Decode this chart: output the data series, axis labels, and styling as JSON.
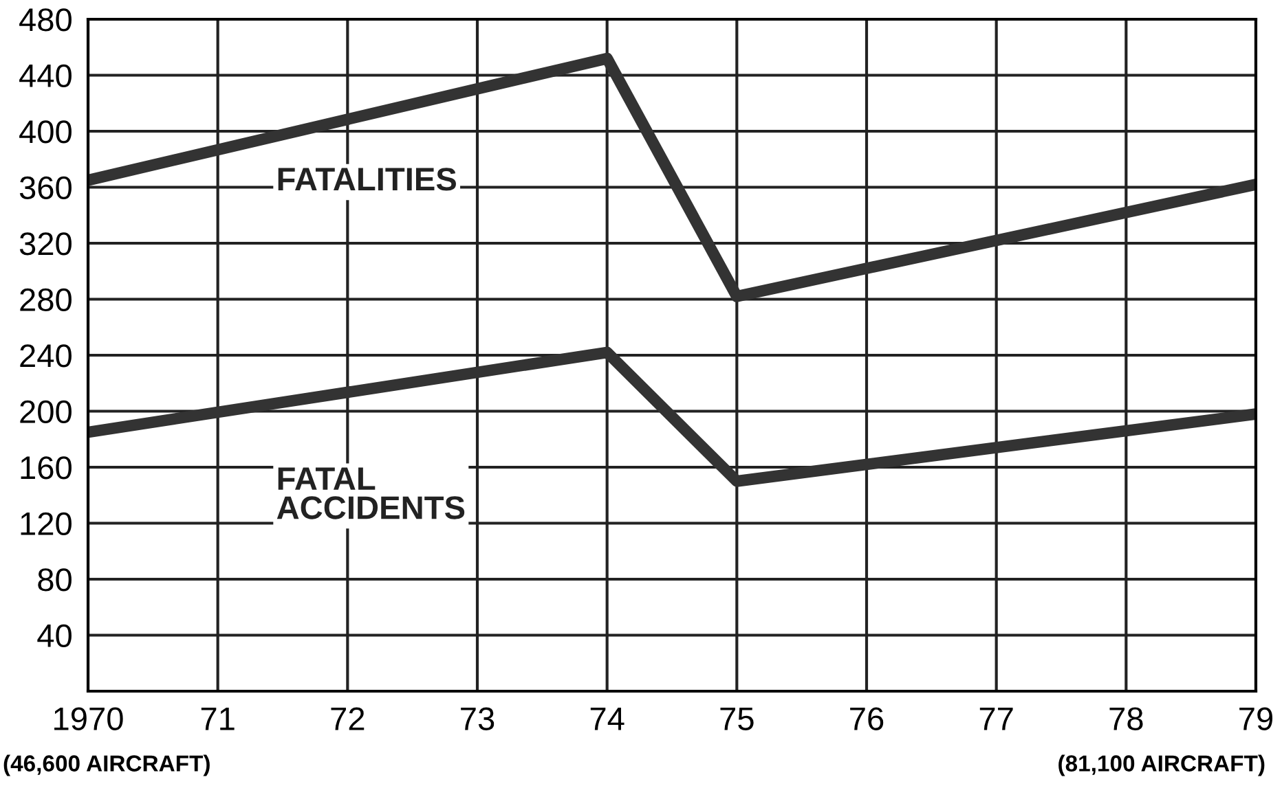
{
  "chart_data": {
    "type": "line",
    "x": [
      1970,
      1974,
      1975,
      1979
    ],
    "series": [
      {
        "name": "FATALITIES",
        "color": "#333333",
        "values": [
          365,
          452,
          282,
          362
        ]
      },
      {
        "name": "FATAL\nACCIDENTS",
        "color": "#333333",
        "values": [
          185,
          242,
          150,
          198
        ]
      }
    ],
    "xlim": [
      1970,
      1979
    ],
    "xticks": [
      {
        "value": 1970,
        "label": "1970"
      },
      {
        "value": 1971,
        "label": "71"
      },
      {
        "value": 1972,
        "label": "72"
      },
      {
        "value": 1973,
        "label": "73"
      },
      {
        "value": 1974,
        "label": "74"
      },
      {
        "value": 1975,
        "label": "75"
      },
      {
        "value": 1976,
        "label": "76"
      },
      {
        "value": 1977,
        "label": "77"
      },
      {
        "value": 1978,
        "label": "78"
      },
      {
        "value": 1979,
        "label": "79"
      }
    ],
    "ylim": [
      0,
      480
    ],
    "yticks": [
      {
        "value": 0,
        "label": null
      },
      40,
      80,
      120,
      160,
      200,
      240,
      280,
      320,
      360,
      400,
      440,
      480
    ],
    "grid": true,
    "legend": false,
    "marker": "none",
    "line_style": "solid",
    "annotations": [
      "(46,600 AIRCRAFT)",
      "(81,100 AIRCRAFT)"
    ]
  }
}
